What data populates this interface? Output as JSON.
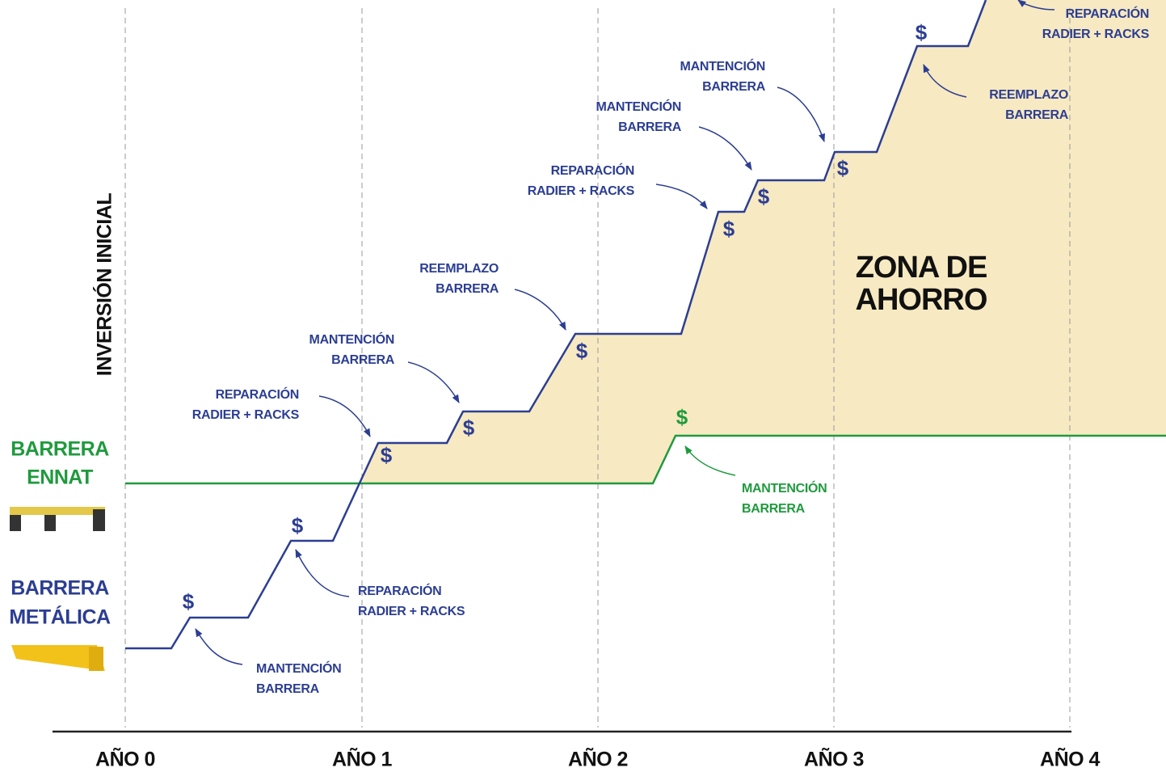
{
  "axis_labels": [
    "AÑO 0",
    "AÑO 1",
    "AÑO 2",
    "AÑO 3",
    "AÑO 4"
  ],
  "initial_investment": "INVERSIÓN INICIAL",
  "legend": [
    {
      "lines": [
        "BARRERA",
        "ENNAT"
      ],
      "color": "#1f9a3e"
    },
    {
      "lines": [
        "BARRERA",
        "METÁLICA"
      ],
      "color": "#2c3e92"
    }
  ],
  "zone": {
    "lines": [
      "ZONA DE",
      "AHORRO"
    ]
  },
  "annotations": [
    {
      "lines": [
        "MANTENCIÓN",
        "BARRERA"
      ],
      "symbol": "$",
      "color": "#2c3e92"
    },
    {
      "lines": [
        "REPARACIÓN",
        "RADIER + RACKS"
      ],
      "symbol": "$",
      "color": "#2c3e92"
    },
    {
      "lines": [
        "REPARACIÓN",
        "RADIER + RACKS"
      ],
      "symbol": "$",
      "color": "#2c3e92"
    },
    {
      "lines": [
        "MANTENCIÓN",
        "BARRERA"
      ],
      "symbol": "$",
      "color": "#2c3e92"
    },
    {
      "lines": [
        "REEMPLAZO",
        "BARRERA"
      ],
      "symbol": "$",
      "color": "#2c3e92"
    },
    {
      "lines": [
        "REPARACIÓN",
        "RADIER + RACKS"
      ],
      "symbol": "$",
      "color": "#2c3e92"
    },
    {
      "lines": [
        "MANTENCIÓN",
        "BARRERA"
      ],
      "symbol": "$",
      "color": "#2c3e92"
    },
    {
      "lines": [
        "MANTENCIÓN",
        "BARRERA"
      ],
      "symbol": "$",
      "color": "#2c3e92"
    },
    {
      "lines": [
        "REEMPLAZO",
        "BARRERA"
      ],
      "symbol": "$",
      "color": "#2c3e92"
    },
    {
      "lines": [
        "REPARACIÓN",
        "RADIER + RACKS"
      ],
      "color": "#2c3e92"
    },
    {
      "lines": [
        "MANTENCIÓN",
        "BARRERA"
      ],
      "symbol": "$",
      "color": "#1f9a3e"
    }
  ]
}
